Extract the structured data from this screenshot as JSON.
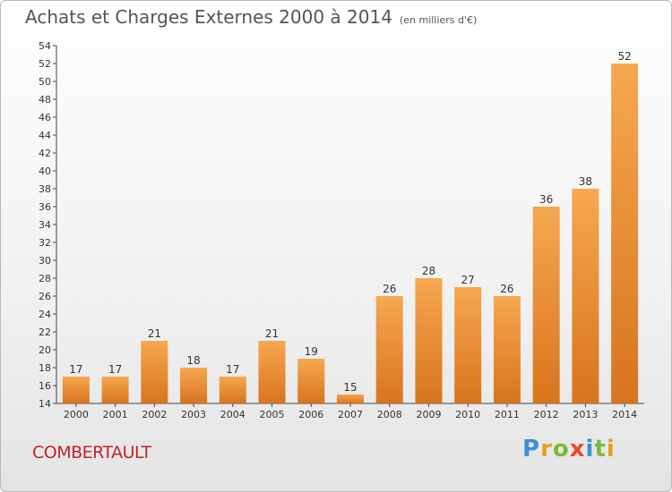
{
  "header": {
    "title": "Achats et Charges Externes 2000 à 2014",
    "subtitle": "(en milliers d'€)"
  },
  "footer": {
    "commune": "COMBERTAULT",
    "logo_text": "Proxiti"
  },
  "colors": {
    "bar_light": "#f6a850",
    "bar_dark": "#d8741e",
    "axis": "#444444",
    "commune_text": "#c0242c"
  },
  "chart_data": {
    "type": "bar",
    "title": "Achats et Charges Externes 2000 à 2014",
    "subtitle": "(en milliers d'€)",
    "categories": [
      "2000",
      "2001",
      "2002",
      "2003",
      "2004",
      "2005",
      "2006",
      "2007",
      "2008",
      "2009",
      "2010",
      "2011",
      "2012",
      "2013",
      "2014"
    ],
    "values": [
      17,
      17,
      21,
      18,
      17,
      21,
      19,
      15,
      26,
      28,
      27,
      26,
      36,
      38,
      52
    ],
    "ylim": [
      14,
      54
    ],
    "yticks": [
      14,
      16,
      18,
      20,
      22,
      24,
      26,
      28,
      30,
      32,
      34,
      36,
      38,
      40,
      42,
      44,
      46,
      48,
      50,
      52,
      54
    ],
    "grid": false,
    "legend": "none"
  }
}
